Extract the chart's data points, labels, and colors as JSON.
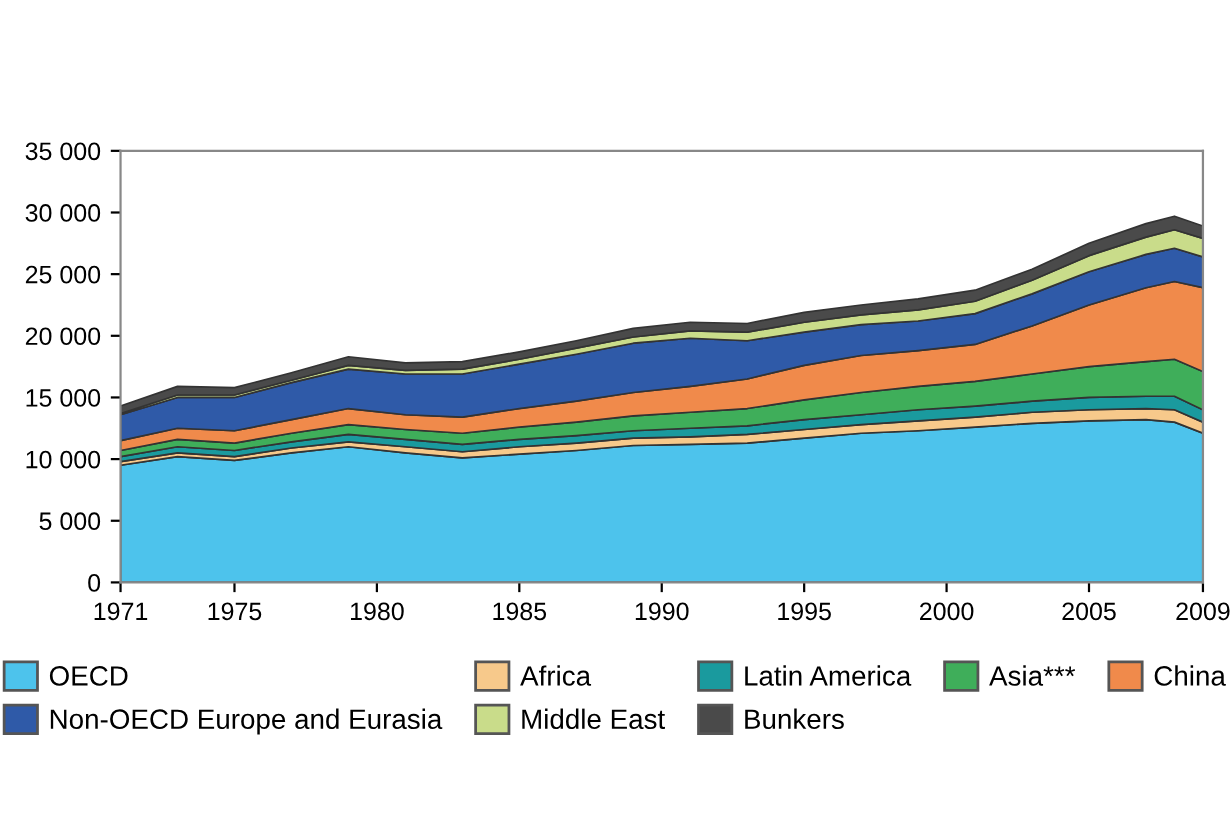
{
  "chart_data": {
    "type": "area",
    "stacked": true,
    "x": [
      1971,
      1973,
      1975,
      1977,
      1979,
      1981,
      1983,
      1985,
      1987,
      1989,
      1991,
      1993,
      1995,
      1997,
      1999,
      2001,
      2003,
      2005,
      2007,
      2008,
      2009
    ],
    "series": [
      {
        "name": "OECD",
        "color": "#4dc3ec",
        "values": [
          9500,
          10200,
          9900,
          10500,
          11000,
          10500,
          10100,
          10400,
          10700,
          11100,
          11200,
          11300,
          11700,
          12100,
          12300,
          12600,
          12900,
          13100,
          13200,
          13000,
          12100
        ]
      },
      {
        "name": "Africa",
        "color": "#f7c98b",
        "values": [
          300,
          300,
          300,
          400,
          400,
          500,
          500,
          600,
          600,
          600,
          600,
          700,
          700,
          700,
          800,
          800,
          900,
          900,
          900,
          1000,
          900
        ]
      },
      {
        "name": "Latin America",
        "color": "#1a9a9e",
        "values": [
          400,
          500,
          500,
          500,
          600,
          600,
          600,
          600,
          600,
          600,
          700,
          700,
          800,
          800,
          900,
          900,
          900,
          1000,
          1000,
          1100,
          1000
        ]
      },
      {
        "name": "Asia***",
        "color": "#3fae5a",
        "values": [
          500,
          600,
          600,
          700,
          800,
          800,
          900,
          1000,
          1100,
          1200,
          1300,
          1400,
          1600,
          1800,
          1900,
          2000,
          2200,
          2500,
          2800,
          3000,
          3100
        ]
      },
      {
        "name": "China",
        "color": "#f08a4b",
        "values": [
          800,
          900,
          1000,
          1100,
          1300,
          1200,
          1300,
          1500,
          1700,
          1900,
          2100,
          2400,
          2800,
          3000,
          2900,
          3000,
          3900,
          5000,
          6000,
          6300,
          6800
        ]
      },
      {
        "name": "Non-OECD Europe and Eurasia",
        "color": "#2f5aa8",
        "values": [
          2100,
          2500,
          2700,
          3000,
          3200,
          3300,
          3500,
          3600,
          3800,
          4000,
          3900,
          3100,
          2700,
          2500,
          2400,
          2500,
          2600,
          2700,
          2700,
          2700,
          2500
        ]
      },
      {
        "name": "Middle East",
        "color": "#c9dc8a",
        "values": [
          100,
          200,
          200,
          200,
          300,
          300,
          400,
          400,
          500,
          500,
          600,
          700,
          800,
          800,
          900,
          1000,
          1100,
          1300,
          1400,
          1500,
          1500
        ]
      },
      {
        "name": "Bunkers",
        "color": "#4a4a4a",
        "values": [
          600,
          700,
          600,
          600,
          700,
          600,
          600,
          600,
          600,
          700,
          700,
          700,
          800,
          800,
          900,
          900,
          900,
          1000,
          1100,
          1100,
          1000
        ]
      }
    ],
    "xlim": [
      1971,
      2009
    ],
    "xticks": [
      1971,
      1975,
      1980,
      1985,
      1990,
      1995,
      2000,
      2005,
      2009
    ],
    "ylim": [
      0,
      35000
    ],
    "yticks": [
      0,
      {
        "value": 5000,
        "label": "5 000"
      },
      {
        "value": 10000,
        "label": "10 000"
      },
      {
        "value": 15000,
        "label": "15 000"
      },
      {
        "value": 20000,
        "label": "20 000"
      },
      {
        "value": 25000,
        "label": "25 000"
      },
      {
        "value": 30000,
        "label": "30 000"
      },
      {
        "value": 35000,
        "label": "35 000"
      }
    ],
    "legend": "bottom"
  }
}
